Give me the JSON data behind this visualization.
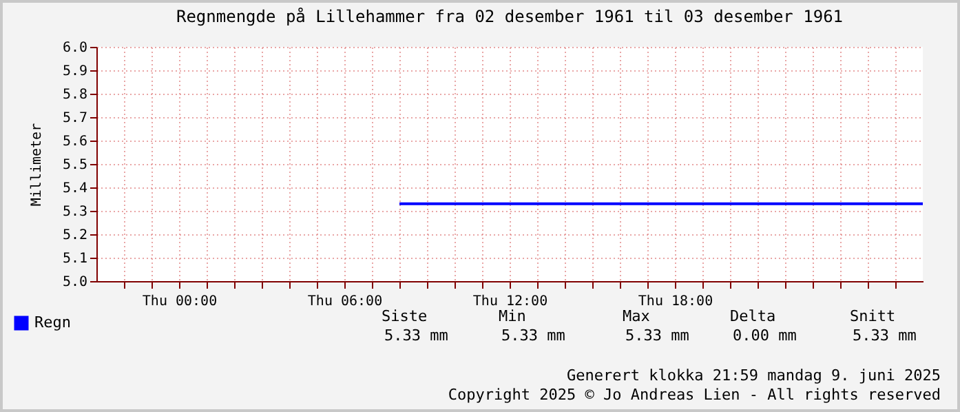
{
  "chart_data": {
    "type": "line",
    "title": "Regnmengde på Lillehammer fra 02 desember 1961 til 03 desember 1961",
    "ylabel": "Millimeter",
    "series": [
      {
        "name": "Regn",
        "color": "#0000ff",
        "x": [
          "1961-12-02T08:00",
          "1961-12-03T03:00"
        ],
        "values": [
          5.33,
          5.33
        ]
      }
    ],
    "xlim": [
      "1961-12-01T21:00",
      "1961-12-03T03:00"
    ],
    "xticks": [
      {
        "value": "1961-12-01T22:00",
        "label": null
      },
      {
        "value": "1961-12-01T23:00",
        "label": null
      },
      {
        "value": "1961-12-02T00:00",
        "label": "Thu 00:00"
      },
      {
        "value": "1961-12-02T01:00",
        "label": null
      },
      {
        "value": "1961-12-02T02:00",
        "label": null
      },
      {
        "value": "1961-12-02T03:00",
        "label": null
      },
      {
        "value": "1961-12-02T04:00",
        "label": null
      },
      {
        "value": "1961-12-02T05:00",
        "label": null
      },
      {
        "value": "1961-12-02T06:00",
        "label": "Thu 06:00"
      },
      {
        "value": "1961-12-02T07:00",
        "label": null
      },
      {
        "value": "1961-12-02T08:00",
        "label": null
      },
      {
        "value": "1961-12-02T09:00",
        "label": null
      },
      {
        "value": "1961-12-02T10:00",
        "label": null
      },
      {
        "value": "1961-12-02T11:00",
        "label": null
      },
      {
        "value": "1961-12-02T12:00",
        "label": "Thu 12:00"
      },
      {
        "value": "1961-12-02T13:00",
        "label": null
      },
      {
        "value": "1961-12-02T14:00",
        "label": null
      },
      {
        "value": "1961-12-02T15:00",
        "label": null
      },
      {
        "value": "1961-12-02T16:00",
        "label": null
      },
      {
        "value": "1961-12-02T17:00",
        "label": null
      },
      {
        "value": "1961-12-02T18:00",
        "label": "Thu 18:00"
      },
      {
        "value": "1961-12-02T19:00",
        "label": null
      },
      {
        "value": "1961-12-02T20:00",
        "label": null
      },
      {
        "value": "1961-12-02T21:00",
        "label": null
      },
      {
        "value": "1961-12-02T22:00",
        "label": null
      },
      {
        "value": "1961-12-02T23:00",
        "label": null
      },
      {
        "value": "1961-12-03T00:00",
        "label": null
      },
      {
        "value": "1961-12-03T01:00",
        "label": null
      },
      {
        "value": "1961-12-03T02:00",
        "label": null
      }
    ],
    "ylim": [
      5.0,
      6.0
    ],
    "yticks": [
      {
        "value": 5.0,
        "label": "5.0"
      },
      {
        "value": 5.1,
        "label": "5.1"
      },
      {
        "value": 5.2,
        "label": "5.2"
      },
      {
        "value": 5.3,
        "label": "5.3"
      },
      {
        "value": 5.4,
        "label": "5.4"
      },
      {
        "value": 5.5,
        "label": "5.5"
      },
      {
        "value": 5.6,
        "label": "5.6"
      },
      {
        "value": 5.7,
        "label": "5.7"
      },
      {
        "value": 5.8,
        "label": "5.8"
      },
      {
        "value": 5.9,
        "label": "5.9"
      },
      {
        "value": 6.0,
        "label": "6.0"
      }
    ],
    "grid": true,
    "legend": "bottom left",
    "marker": "none",
    "line_style": "solid",
    "annotations": [
      "Siste",
      "Min",
      "Max",
      "Delta",
      "Snitt",
      "5.33 mm",
      "5.33 mm",
      "5.33 mm",
      "0.00 mm",
      "5.33 mm",
      "Generert klokka 21:59 mandag 9. juni 2025",
      "Copyright 2025 © Jo Andreas Lien - All rights reserved"
    ]
  }
}
